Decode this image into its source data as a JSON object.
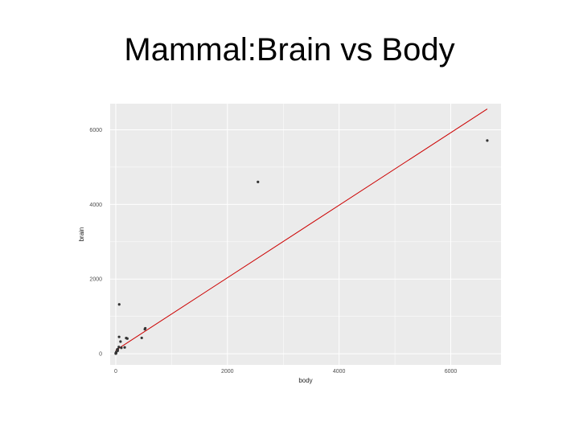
{
  "slide": {
    "title": "Mammal:Brain vs Body"
  },
  "colors": {
    "panel": "#ebebeb",
    "grid": "#ffffff",
    "points": "#333333",
    "fit_line": "#cc0000"
  },
  "chart_data": {
    "type": "scatter",
    "title": "",
    "xlabel": "body",
    "ylabel": "brain",
    "xlim": [
      -100,
      6900
    ],
    "ylim": [
      -300,
      6700
    ],
    "x_ticks": [
      0,
      2000,
      4000,
      6000
    ],
    "y_ticks": [
      0,
      2000,
      4000,
      6000
    ],
    "x_tick_labels": [
      "0",
      "2000",
      "4000",
      "6000"
    ],
    "y_tick_labels": [
      "0",
      "2000",
      "4000",
      "6000"
    ],
    "grid": true,
    "series": [
      {
        "type": "points",
        "x": [
          6654,
          2547,
          62,
          521,
          465,
          529,
          207,
          187,
          160,
          85,
          100,
          55,
          36,
          27,
          10,
          6,
          3,
          1,
          0.1,
          0.5,
          2,
          4,
          60,
          35
        ],
        "y": [
          5712,
          4603,
          1320,
          655,
          423,
          680,
          406,
          419,
          169,
          325,
          157,
          180,
          119,
          115,
          50,
          25,
          12,
          5,
          3,
          4,
          11,
          20,
          450,
          80
        ]
      },
      {
        "type": "fit_line",
        "x": [
          0,
          6654
        ],
        "y": [
          91,
          6558
        ]
      }
    ]
  }
}
